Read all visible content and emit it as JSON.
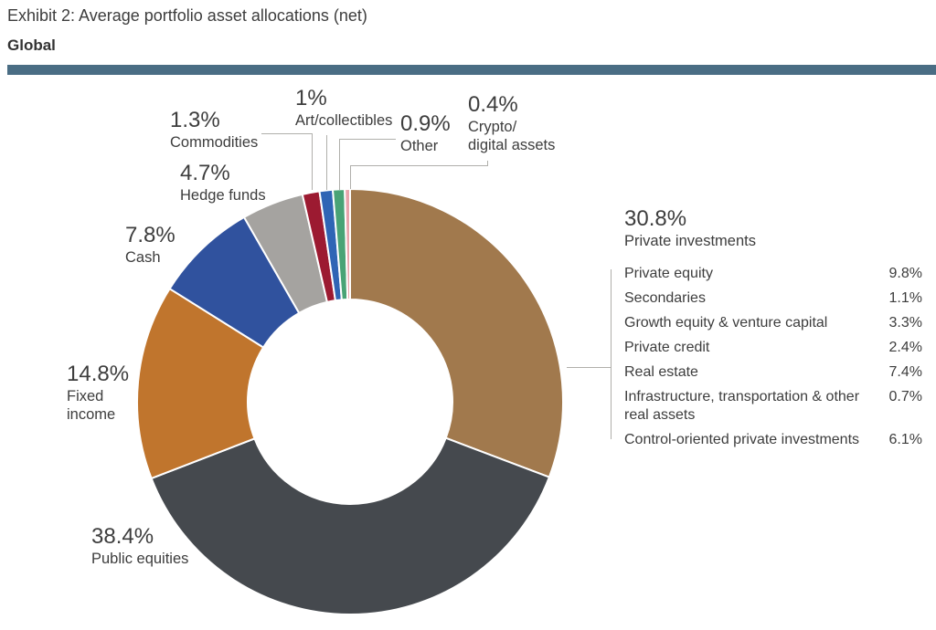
{
  "header": {
    "title": "Exhibit 2: Average portfolio asset allocations (net)",
    "region_label": "Global",
    "divider_color": "#4a6d84"
  },
  "chart_data": {
    "type": "pie",
    "donut": true,
    "title": "Exhibit 2: Average portfolio asset allocations (net)",
    "subtitle": "Global",
    "start_angle_deg": 0,
    "direction": "clockwise",
    "slice_separator_color": "#ffffff",
    "slices": [
      {
        "label": "Private investments",
        "value": 30.8,
        "display": "30.8%",
        "display_name": "Private investments",
        "color": "#a1794d"
      },
      {
        "label": "Public equities",
        "value": 38.4,
        "display": "38.4%",
        "display_name": "Public equities",
        "color": "#45494e"
      },
      {
        "label": "Fixed income",
        "value": 14.8,
        "display": "14.8%",
        "display_name": "Fixed\nincome",
        "color": "#c0752d"
      },
      {
        "label": "Cash",
        "value": 7.8,
        "display": "7.8%",
        "display_name": "Cash",
        "color": "#30529e"
      },
      {
        "label": "Hedge funds",
        "value": 4.7,
        "display": "4.7%",
        "display_name": "Hedge funds",
        "color": "#a5a3a0"
      },
      {
        "label": "Commodities",
        "value": 1.3,
        "display": "1.3%",
        "display_name": "Commodities",
        "color": "#9c1a31"
      },
      {
        "label": "Art/collectibles",
        "value": 1.0,
        "display": "1%",
        "display_name": "Art/collectibles",
        "color": "#2f65b5"
      },
      {
        "label": "Other",
        "value": 0.9,
        "display": "0.9%",
        "display_name": "Other",
        "color": "#49a376"
      },
      {
        "label": "Crypto/digital assets",
        "value": 0.4,
        "display": "0.4%",
        "display_name": "Crypto/\ndigital assets",
        "color": "#e9a4ac"
      }
    ],
    "breakdown": {
      "parent": "Private investments",
      "parent_display": "30.8%",
      "rows": [
        {
          "label": "Private equity",
          "value": "9.8%"
        },
        {
          "label": "Secondaries",
          "value": "1.1%"
        },
        {
          "label": "Growth equity & venture capital",
          "value": "3.3%"
        },
        {
          "label": "Private credit",
          "value": "2.4%"
        },
        {
          "label": "Real estate",
          "value": "7.4%"
        },
        {
          "label": "Infrastructure, transportation & other real assets",
          "value": "0.7%"
        },
        {
          "label": "Control-oriented private investments",
          "value": "6.1%"
        }
      ]
    }
  }
}
